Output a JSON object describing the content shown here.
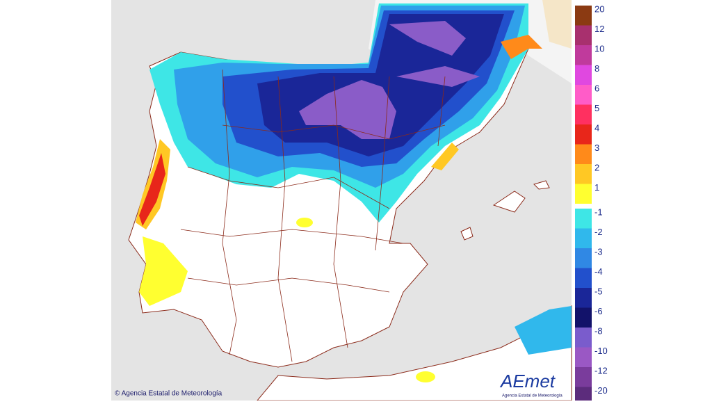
{
  "legend": [
    {
      "label": "20",
      "color": "#8b3a12"
    },
    {
      "label": "12",
      "color": "#a8306e"
    },
    {
      "label": "10",
      "color": "#c03a9c"
    },
    {
      "label": "8",
      "color": "#e048e0"
    },
    {
      "label": "6",
      "color": "#ff5cc8"
    },
    {
      "label": "5",
      "color": "#ff3060"
    },
    {
      "label": "4",
      "color": "#e8261a"
    },
    {
      "label": "3",
      "color": "#ff8a1a"
    },
    {
      "label": "2",
      "color": "#ffc824"
    },
    {
      "label": "1",
      "color": "#ffff30"
    },
    {
      "label": "-1",
      "color": "#3ee6e6"
    },
    {
      "label": "-2",
      "color": "#30b8ec"
    },
    {
      "label": "-3",
      "color": "#3088e4"
    },
    {
      "label": "-4",
      "color": "#2250cc"
    },
    {
      "label": "-5",
      "color": "#1a2698"
    },
    {
      "label": "-6",
      "color": "#12126a"
    },
    {
      "label": "-8",
      "color": "#7a5ccc"
    },
    {
      "label": "-10",
      "color": "#9a58c4"
    },
    {
      "label": "-12",
      "color": "#7a3c9c"
    },
    {
      "label": "-20",
      "color": "#5c2c7c"
    }
  ],
  "credit": "© Agencia Estatal de Meteorología",
  "logo": {
    "name": "AEmet",
    "subtitle": "Agencia Estatal de Meteorología"
  }
}
